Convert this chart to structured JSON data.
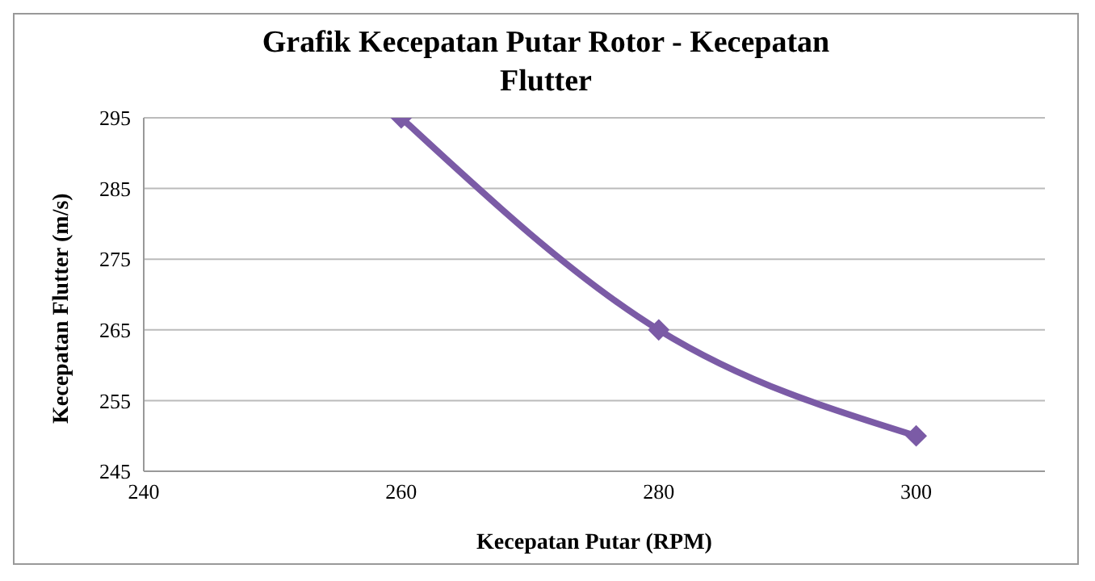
{
  "chart_data": {
    "type": "line",
    "title": "Grafik Kecepatan Putar Rotor - Kecepatan Flutter",
    "xlabel": "Kecepatan Putar  (RPM)",
    "ylabel": "Kecepatan Flutter  (m/s)",
    "x": [
      260,
      280,
      300
    ],
    "series": [
      {
        "color": "#7b5ba6",
        "values": [
          295,
          265,
          250
        ]
      }
    ],
    "xlim": [
      240,
      310
    ],
    "xticks": [
      240,
      260,
      280,
      300
    ],
    "ylim": [
      245,
      295
    ],
    "yticks": [
      245,
      255,
      265,
      275,
      285,
      295
    ],
    "grid": "y",
    "marker": "diamond",
    "line_style": "solid",
    "legend": false
  }
}
